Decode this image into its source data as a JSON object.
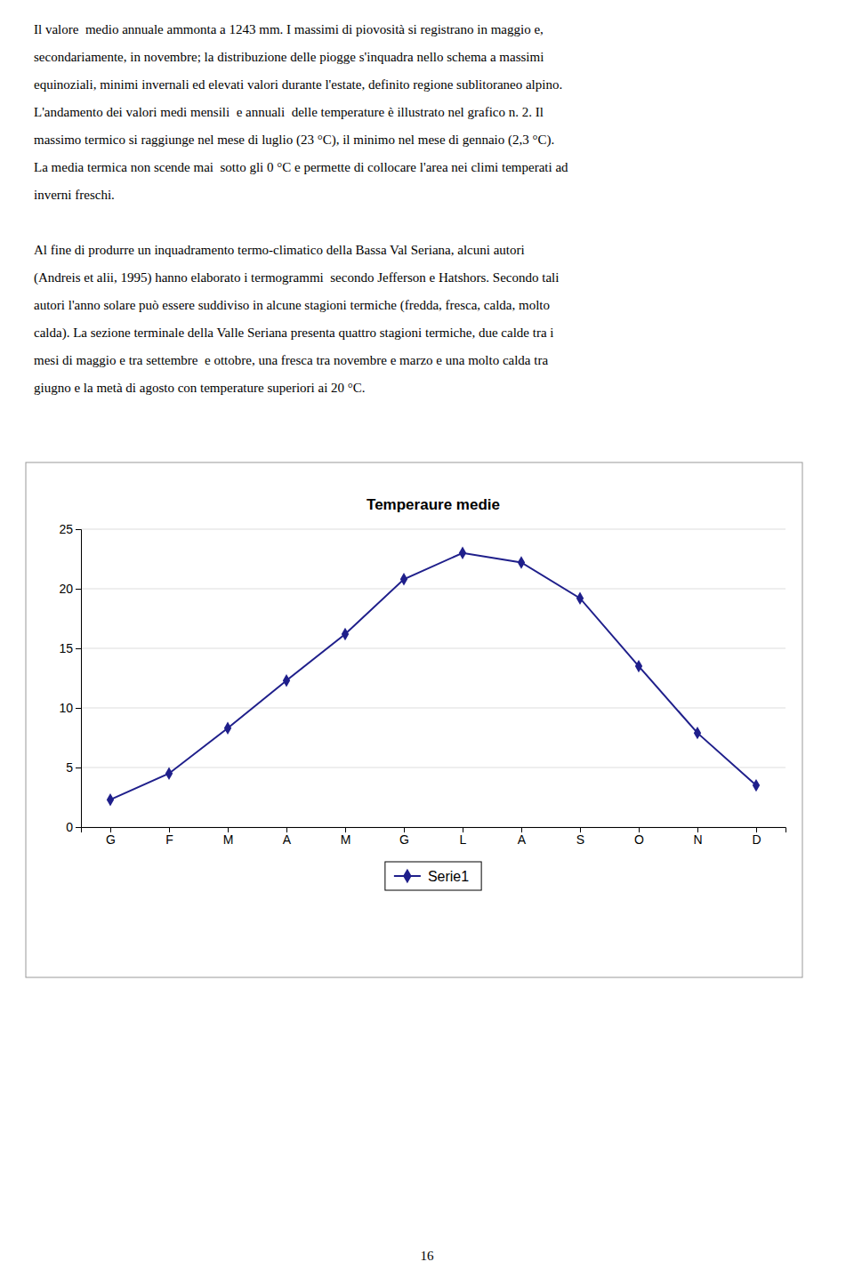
{
  "text": [
    [
      "Il valore  medio annuale ammonta a 1243 mm. I massimi di piovosità si registrano in maggio e,",
      "secondariamente, in novembre; la distribuzione delle piogge s'inquadra nello schema a massimi",
      "equinoziali, minimi invernali ed elevati valori durante l'estate, definito regione sublitoraneo alpino.",
      "L'andamento dei valori medi mensili  e annuali  delle temperature è illustrato nel grafico n. 2. Il",
      "massimo termico si raggiunge nel mese di luglio (23 °C), il minimo nel mese di gennaio (2,3 °C).",
      "La media termica non scende mai  sotto gli 0 °C e permette di collocare l'area nei climi temperati ad",
      "inverni freschi."
    ],
    [
      "Al fine di produrre un inquadramento termo-climatico della Bassa Val Seriana, alcuni autori",
      "(Andreis et alii, 1995) hanno elaborato i termogrammi  secondo Jefferson e Hatshors. Secondo tali",
      "autori l'anno solare può essere suddiviso in alcune stagioni termiche (fredda, fresca, calda, molto",
      "calda). La sezione terminale della Valle Seriana presenta quattro stagioni termiche, due calde tra i",
      "mesi di maggio e tra settembre  e ottobre, una fresca tra novembre e marzo e una molto calda tra",
      "giugno e la metà di agosto con temperature superiori ai 20 °C."
    ]
  ],
  "page_number": "16",
  "chart_data": {
    "type": "line",
    "title": "Temperaure medie",
    "categories": [
      "G",
      "F",
      "M",
      "A",
      "M",
      "G",
      "L",
      "A",
      "S",
      "O",
      "N",
      "D"
    ],
    "series": [
      {
        "name": "Serie1",
        "color": "#1F1F8B",
        "marker": "diamond",
        "values": [
          2.3,
          4.5,
          8.3,
          12.3,
          16.2,
          20.8,
          23.0,
          22.2,
          19.2,
          13.5,
          7.9,
          3.5
        ]
      }
    ],
    "ylim": [
      0,
      25
    ],
    "yticks": [
      0,
      5,
      10,
      15,
      20,
      25
    ],
    "grid": true,
    "legend": "bottom"
  }
}
